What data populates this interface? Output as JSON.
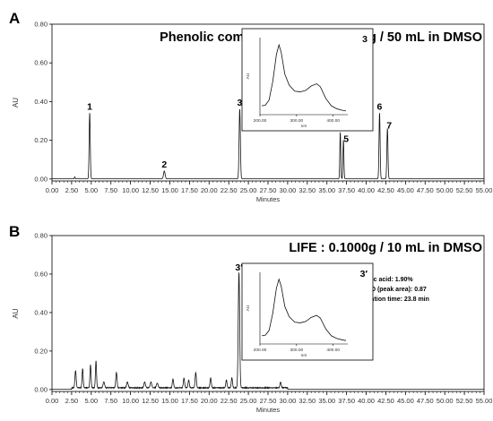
{
  "chart_data": [
    {
      "type": "line",
      "panel_letter": "A",
      "title": "Phenolic compounds STD: 0.0050g / 50 mL in DMSO",
      "xlabel": "Minutes",
      "ylabel": "AU",
      "xlim": [
        0,
        55
      ],
      "ylim": [
        -0.01,
        0.8
      ],
      "xticks": [
        "0.00",
        "2.50",
        "5.00",
        "7.50",
        "10.00",
        "12.50",
        "15.00",
        "17.50",
        "20.00",
        "22.50",
        "25.00",
        "27.50",
        "30.00",
        "32.50",
        "35.00",
        "37.50",
        "40.00",
        "42.50",
        "45.00",
        "47.50",
        "50.00",
        "52.50",
        "55.00"
      ],
      "yticks": [
        "0.00",
        "0.20",
        "0.40",
        "0.60",
        "0.80"
      ],
      "grid": false,
      "peaks": [
        {
          "label": "1",
          "rt": 4.8,
          "height": 0.34,
          "width": 0.07
        },
        {
          "label": "2",
          "rt": 14.3,
          "height": 0.04,
          "width": 0.1
        },
        {
          "label": "3",
          "rt": 23.9,
          "height": 0.36,
          "width": 0.08
        },
        {
          "label": "4",
          "rt": 36.7,
          "height": 0.24,
          "width": 0.06
        },
        {
          "label": "5",
          "rt": 37.1,
          "height": 0.2,
          "width": 0.06
        },
        {
          "label": "6",
          "rt": 41.7,
          "height": 0.34,
          "width": 0.07
        },
        {
          "label": "7",
          "rt": 42.7,
          "height": 0.26,
          "width": 0.07
        }
      ],
      "minor_peaks": [
        {
          "rt": 2.9,
          "height": 0.01,
          "width": 0.05
        }
      ],
      "inset": {
        "label": "3",
        "xlabel": "nm",
        "ylabel": "AU",
        "xticks": [
          "200.00",
          "300.00",
          "400.00"
        ],
        "xlim": [
          200,
          440
        ],
        "spectrum": [
          [
            205,
            0.12
          ],
          [
            215,
            0.13
          ],
          [
            225,
            0.2
          ],
          [
            235,
            0.45
          ],
          [
            245,
            0.82
          ],
          [
            252,
            0.95
          ],
          [
            258,
            0.85
          ],
          [
            268,
            0.55
          ],
          [
            280,
            0.4
          ],
          [
            295,
            0.32
          ],
          [
            310,
            0.31
          ],
          [
            325,
            0.33
          ],
          [
            340,
            0.39
          ],
          [
            355,
            0.42
          ],
          [
            365,
            0.38
          ],
          [
            380,
            0.22
          ],
          [
            395,
            0.12
          ],
          [
            410,
            0.08
          ],
          [
            425,
            0.06
          ],
          [
            435,
            0.05
          ]
        ]
      }
    },
    {
      "type": "line",
      "panel_letter": "B",
      "title": "LIFE : 0.1000g / 10 mL in DMSO",
      "xlabel": "Minutes",
      "ylabel": "AU",
      "xlim": [
        0,
        55
      ],
      "ylim": [
        -0.01,
        0.8
      ],
      "xticks": [
        "0.00",
        "2.50",
        "5.00",
        "7.50",
        "10.00",
        "12.50",
        "15.00",
        "17.50",
        "20.00",
        "22.50",
        "25.00",
        "27.50",
        "30.00",
        "32.50",
        "35.00",
        "37.50",
        "40.00",
        "42.50",
        "45.00",
        "47.50",
        "50.00",
        "52.50",
        "55.00"
      ],
      "yticks": [
        "0.00",
        "0.20",
        "0.40",
        "0.60",
        "0.80"
      ],
      "grid": false,
      "peaks": [
        {
          "label": "3′",
          "rt": 23.8,
          "height": 0.6,
          "width": 0.09
        }
      ],
      "minor_peaks": [
        {
          "rt": 3.0,
          "height": 0.09,
          "width": 0.08
        },
        {
          "rt": 3.9,
          "height": 0.1,
          "width": 0.07
        },
        {
          "rt": 4.9,
          "height": 0.12,
          "width": 0.07
        },
        {
          "rt": 5.6,
          "height": 0.14,
          "width": 0.07
        },
        {
          "rt": 6.6,
          "height": 0.03,
          "width": 0.1
        },
        {
          "rt": 8.2,
          "height": 0.08,
          "width": 0.08
        },
        {
          "rt": 9.6,
          "height": 0.03,
          "width": 0.1
        },
        {
          "rt": 11.8,
          "height": 0.03,
          "width": 0.1
        },
        {
          "rt": 12.6,
          "height": 0.03,
          "width": 0.1
        },
        {
          "rt": 13.4,
          "height": 0.025,
          "width": 0.1
        },
        {
          "rt": 15.4,
          "height": 0.045,
          "width": 0.08
        },
        {
          "rt": 16.8,
          "height": 0.05,
          "width": 0.08
        },
        {
          "rt": 17.4,
          "height": 0.04,
          "width": 0.08
        },
        {
          "rt": 18.3,
          "height": 0.08,
          "width": 0.08
        },
        {
          "rt": 20.2,
          "height": 0.05,
          "width": 0.08
        },
        {
          "rt": 22.2,
          "height": 0.04,
          "width": 0.08
        },
        {
          "rt": 22.9,
          "height": 0.05,
          "width": 0.08
        },
        {
          "rt": 29.1,
          "height": 0.03,
          "width": 0.08
        }
      ],
      "annotations": [
        "Ellagic acid: 1.90%",
        "%RSD (peak area): 0.87",
        "Retention time: 23.8 min"
      ],
      "inset": {
        "label": "3′",
        "xlabel": "nm",
        "ylabel": "AU",
        "xticks": [
          "200.00",
          "300.00",
          "400.00"
        ],
        "xlim": [
          200,
          440
        ],
        "spectrum": [
          [
            205,
            0.12
          ],
          [
            215,
            0.13
          ],
          [
            225,
            0.2
          ],
          [
            235,
            0.45
          ],
          [
            245,
            0.82
          ],
          [
            252,
            0.95
          ],
          [
            258,
            0.85
          ],
          [
            268,
            0.55
          ],
          [
            280,
            0.4
          ],
          [
            295,
            0.32
          ],
          [
            310,
            0.31
          ],
          [
            325,
            0.33
          ],
          [
            340,
            0.39
          ],
          [
            355,
            0.42
          ],
          [
            365,
            0.38
          ],
          [
            380,
            0.22
          ],
          [
            395,
            0.12
          ],
          [
            410,
            0.08
          ],
          [
            425,
            0.06
          ],
          [
            435,
            0.05
          ]
        ]
      }
    }
  ]
}
